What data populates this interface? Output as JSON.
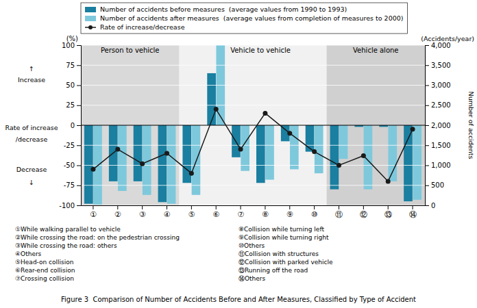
{
  "chart_data": {
    "type": "bar",
    "categories": [
      "①",
      "②",
      "③",
      "④",
      "⑤",
      "⑥",
      "⑦",
      "⑧",
      "⑨",
      "⑩",
      "⑪",
      "⑫",
      "⑬",
      "⑭"
    ],
    "series": [
      {
        "name": "Number of accidents before measures  (average values from 1990 to 1993)",
        "color": "#1a7fa0",
        "values": [
          -98,
          -70,
          -70,
          -96,
          -72,
          65,
          -40,
          -72,
          -20,
          -33,
          -80,
          -2,
          -2,
          -95
        ]
      },
      {
        "name": "Number of accidents after measures  (average values from completion of measures to 2000)",
        "color": "#7ec8dc",
        "values": [
          -99,
          -82,
          -87,
          -98,
          -87,
          100,
          -57,
          -68,
          -55,
          -60,
          -42,
          -80,
          -70,
          -93
        ]
      },
      {
        "name": "Rate of increase/decrease",
        "type": "line",
        "marker": "o",
        "color": "#1a1a1a",
        "values": [
          -55,
          -30,
          -48,
          -35,
          -60,
          20,
          -30,
          15,
          -10,
          -33,
          -50,
          -38,
          -70,
          -5
        ]
      }
    ],
    "groups": [
      {
        "label": "Person to vehicle",
        "start": "①",
        "end": "④",
        "color": "#c0c0c0"
      },
      {
        "label": "Vehicle to vehicle",
        "start": "⑤",
        "end": "⑩",
        "color": "#e8e8e8"
      },
      {
        "label": "Vehicle alone",
        "start": "⑪",
        "end": "⑭",
        "color": "#b0b0b0"
      }
    ],
    "ylim": [
      -100,
      100
    ],
    "yticks": [
      -100,
      -75,
      -50,
      -25,
      0,
      25,
      50,
      75,
      100
    ],
    "y2lim": [
      0,
      4000
    ],
    "y2ticks": [
      0,
      500,
      {
        "value": 1000,
        "label": "1,000"
      },
      {
        "value": 1500,
        "label": "1,500"
      },
      {
        "value": 2000,
        "label": "2,000"
      },
      {
        "value": 2500,
        "label": "2,500"
      },
      {
        "value": 3000,
        "label": "3,000"
      },
      {
        "value": 3500,
        "label": "3,500"
      },
      {
        "value": 4000,
        "label": "4,000"
      }
    ],
    "y_label": "(%)",
    "y2_label": "Number of accidents",
    "y2_unit": "(Accidents/year)",
    "annotations": [
      "↑",
      "Increase",
      "Rate of increase",
      "/decrease",
      "Decrease",
      "↓"
    ],
    "grid": true,
    "legend": "top",
    "footnotes_left": [
      "①While walking parallel to vehicle",
      "②While crossing the road: on the pedestrian crossing",
      "③While crossing the road: others",
      "④Others",
      "⑤Head-on collision",
      "⑥Rear-end collision",
      "⑦Crossing collision"
    ],
    "footnotes_right": [
      "⑧Collision while turning left",
      "⑨Collision while turning right",
      "⑩Others",
      "⑪Collision with structures",
      "⑫Collision with parked vehicle",
      "⑬Running off the road",
      "⑭Others"
    ],
    "caption": "Figure 3  Comparison of Number of Accidents Before and After Measures, Classified by Type of Accident"
  }
}
